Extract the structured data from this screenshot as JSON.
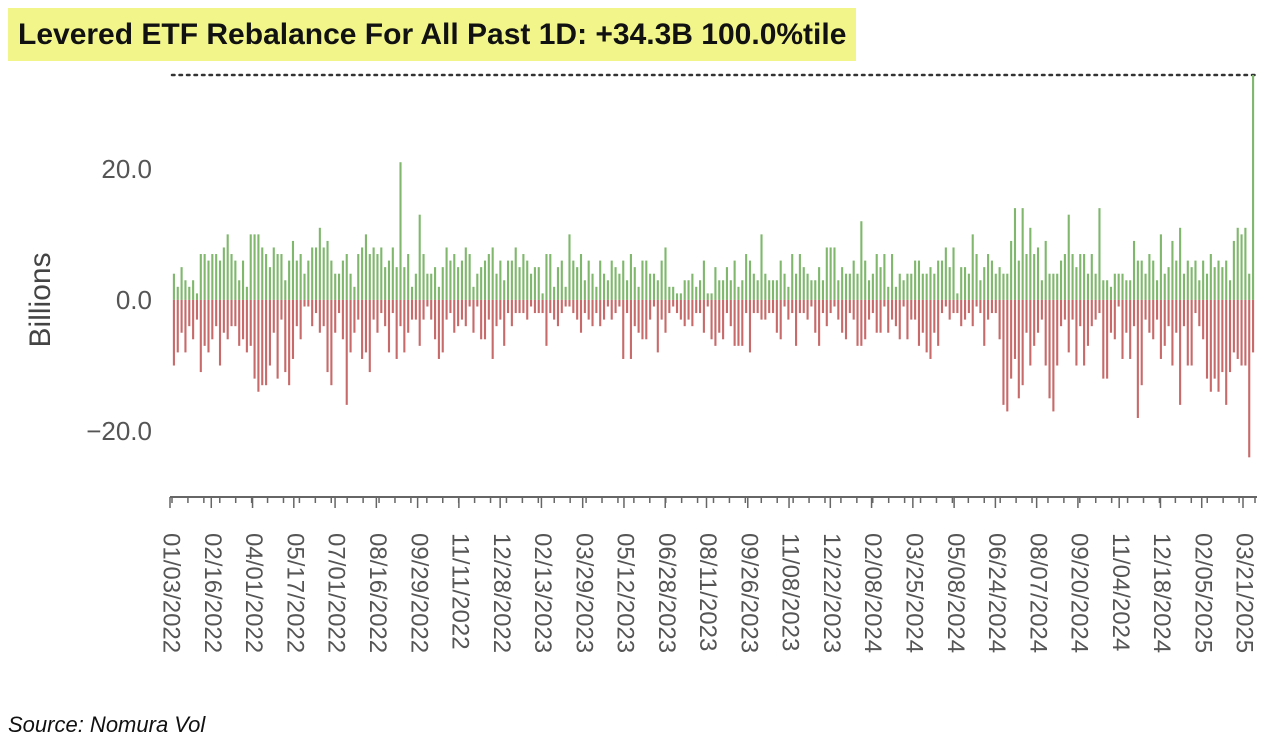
{
  "title": "Levered ETF Rebalance For All Past 1D: +34.3B 100.0%tile",
  "source": "Source: Nomura Vol",
  "colors": {
    "positive": "#7fb86d",
    "negative": "#c86a6a",
    "title_highlight": "#f1f58a",
    "axis": "#666666"
  },
  "chart_data": {
    "type": "bar",
    "xlabel": "",
    "ylabel": "Billions",
    "ylim": [
      -27,
      34.3
    ],
    "y_ticks": [
      20.0,
      0.0,
      -20.0
    ],
    "y_tick_labels": [
      "20.0",
      "0.0",
      "−20.0"
    ],
    "x_tick_labels": [
      "01/03/2022",
      "02/16/2022",
      "04/01/2022",
      "05/17/2022",
      "07/01/2022",
      "08/16/2022",
      "09/29/2022",
      "11/11/2022",
      "12/28/2022",
      "02/13/2023",
      "03/29/2023",
      "05/12/2023",
      "06/28/2023",
      "08/11/2023",
      "09/26/2023",
      "11/08/2023",
      "12/22/2023",
      "02/08/2024",
      "03/25/2024",
      "05/08/2024",
      "06/24/2024",
      "08/07/2024",
      "09/20/2024",
      "11/04/2024",
      "12/18/2024",
      "02/05/2025",
      "03/21/2025"
    ],
    "reference_line": {
      "value": 34.3,
      "style": "dotted"
    },
    "grid": false,
    "legend": "none",
    "series": [
      {
        "values": [
          [
            4,
            -10
          ],
          [
            2,
            -8
          ],
          [
            5,
            -5
          ],
          [
            3,
            -8
          ],
          [
            2,
            -4
          ],
          [
            3,
            -6
          ],
          [
            1,
            -3
          ],
          [
            7,
            -11
          ],
          [
            7,
            -7
          ],
          [
            6,
            -8
          ],
          [
            7,
            -6
          ],
          [
            7,
            -4
          ],
          [
            6,
            -10
          ],
          [
            8,
            -5
          ],
          [
            10,
            -6
          ],
          [
            7,
            -4
          ],
          [
            6,
            -4
          ],
          [
            3,
            -7
          ],
          [
            6,
            -6
          ],
          [
            2,
            -8
          ],
          [
            10,
            -7
          ],
          [
            10,
            -12
          ],
          [
            10,
            -14
          ],
          [
            8,
            -13
          ],
          [
            7,
            -13
          ],
          [
            5,
            -10
          ],
          [
            8,
            -5
          ],
          [
            7,
            -12
          ],
          [
            7,
            -3
          ],
          [
            3,
            -11
          ],
          [
            6,
            -13
          ],
          [
            9,
            -9
          ],
          [
            6,
            -4
          ],
          [
            7,
            -6
          ],
          [
            4,
            -1
          ],
          [
            6,
            -1
          ],
          [
            8,
            -4
          ],
          [
            8,
            -2
          ],
          [
            11,
            -5
          ],
          [
            8,
            -4
          ],
          [
            9,
            -11
          ],
          [
            6,
            -13
          ],
          [
            4,
            -5
          ],
          [
            4,
            -2
          ],
          [
            6,
            -6
          ],
          [
            7,
            -16
          ],
          [
            4,
            -8
          ],
          [
            2,
            -5
          ],
          [
            7,
            -3
          ],
          [
            8,
            -9
          ],
          [
            10,
            -8
          ],
          [
            7,
            -11
          ],
          [
            8,
            -3
          ],
          [
            7,
            -5
          ],
          [
            8,
            -2
          ],
          [
            5,
            -4
          ],
          [
            6,
            -8
          ],
          [
            8,
            -2
          ],
          [
            5,
            -9
          ],
          [
            21,
            -4
          ],
          [
            5,
            -8
          ],
          [
            7,
            -5
          ],
          [
            2,
            -3
          ],
          [
            4,
            -3
          ],
          [
            13,
            -7
          ],
          [
            7,
            -3
          ],
          [
            4,
            -1
          ],
          [
            4,
            -3
          ],
          [
            5,
            -6
          ],
          [
            2,
            -9
          ],
          [
            5,
            -8
          ],
          [
            8,
            -3
          ],
          [
            6,
            -2
          ],
          [
            7,
            -5
          ],
          [
            5,
            -4
          ],
          [
            6,
            -3
          ],
          [
            8,
            -4
          ],
          [
            7,
            -1
          ],
          [
            2,
            -5
          ],
          [
            4,
            -1
          ],
          [
            5,
            -6
          ],
          [
            6,
            -6
          ],
          [
            7,
            -3
          ],
          [
            8,
            -9
          ],
          [
            4,
            -4
          ],
          [
            6,
            -3
          ],
          [
            3,
            -7
          ],
          [
            6,
            -2
          ],
          [
            6,
            -4
          ],
          [
            8,
            -2
          ],
          [
            5,
            -2
          ],
          [
            7,
            -2
          ],
          [
            6,
            -3
          ],
          [
            4,
            -1
          ],
          [
            5,
            -2
          ],
          [
            5,
            -2
          ],
          [
            1,
            -2
          ],
          [
            7,
            -7
          ],
          [
            7,
            -2
          ],
          [
            2,
            -3
          ],
          [
            5,
            -4
          ],
          [
            6,
            -2
          ],
          [
            2,
            -1
          ],
          [
            10,
            -1
          ],
          [
            6,
            -2
          ],
          [
            5,
            -3
          ],
          [
            7,
            -5
          ],
          [
            3,
            -2
          ],
          [
            6,
            -3
          ],
          [
            4,
            -4
          ],
          [
            2,
            -2
          ],
          [
            6,
            -4
          ],
          [
            4,
            -3
          ],
          [
            3,
            -1
          ],
          [
            6,
            -3
          ],
          [
            5,
            -2
          ],
          [
            4,
            -1
          ],
          [
            6,
            -9
          ],
          [
            3,
            -2
          ],
          [
            7,
            -9
          ],
          [
            5,
            -4
          ],
          [
            2,
            -5
          ],
          [
            6,
            -6
          ],
          [
            6,
            -6
          ],
          [
            4,
            -3
          ],
          [
            4,
            -1
          ],
          [
            3,
            -8
          ],
          [
            6,
            -3
          ],
          [
            8,
            -5
          ],
          [
            2,
            -2
          ],
          [
            2,
            -1
          ],
          [
            1,
            -2
          ],
          [
            1,
            -3
          ],
          [
            3,
            -4
          ],
          [
            3,
            -3
          ],
          [
            4,
            -4
          ],
          [
            2,
            -2
          ],
          [
            3,
            -2
          ],
          [
            6,
            -5
          ],
          [
            1,
            -1
          ],
          [
            1,
            -6
          ],
          [
            5,
            -7
          ],
          [
            3,
            -5
          ],
          [
            3,
            -6
          ],
          [
            5,
            -2
          ],
          [
            3,
            -4
          ],
          [
            6,
            -7
          ],
          [
            2,
            -7
          ],
          [
            3,
            -7
          ],
          [
            7,
            -2
          ],
          [
            6,
            -8
          ],
          [
            4,
            -2
          ],
          [
            3,
            -2
          ],
          [
            10,
            -3
          ],
          [
            4,
            -3
          ],
          [
            3,
            -2
          ],
          [
            3,
            -2
          ],
          [
            3,
            -5
          ],
          [
            6,
            -6
          ],
          [
            4,
            -1
          ],
          [
            2,
            -3
          ],
          [
            7,
            -2
          ],
          [
            4,
            -7
          ],
          [
            7,
            -2
          ],
          [
            5,
            -2
          ],
          [
            4,
            -3
          ],
          [
            3,
            -1
          ],
          [
            3,
            -5
          ],
          [
            5,
            -7
          ],
          [
            3,
            -2
          ],
          [
            8,
            -4
          ],
          [
            8,
            -2
          ],
          [
            8,
            -1
          ],
          [
            3,
            -3
          ],
          [
            5,
            -5
          ],
          [
            4,
            -6
          ],
          [
            4,
            -2
          ],
          [
            6,
            -3
          ],
          [
            4,
            -7
          ],
          [
            12,
            -7
          ],
          [
            6,
            -6
          ],
          [
            3,
            -3
          ],
          [
            4,
            -2
          ],
          [
            7,
            -5
          ],
          [
            5,
            -5
          ],
          [
            7,
            -1
          ],
          [
            2,
            -5
          ],
          [
            7,
            -3
          ],
          [
            2,
            -4
          ],
          [
            4,
            -6
          ],
          [
            3,
            -1
          ],
          [
            4,
            -6
          ],
          [
            4,
            -3
          ],
          [
            6,
            -3
          ],
          [
            6,
            -7
          ],
          [
            4,
            -5
          ],
          [
            4,
            -8
          ],
          [
            5,
            -9
          ],
          [
            4,
            -5
          ],
          [
            6,
            -7
          ],
          [
            6,
            -2
          ],
          [
            8,
            -1
          ],
          [
            5,
            -3
          ],
          [
            8,
            -2
          ],
          [
            1,
            -2
          ],
          [
            5,
            -4
          ],
          [
            5,
            -3
          ],
          [
            4,
            -2
          ],
          [
            10,
            -4
          ],
          [
            7,
            -1
          ],
          [
            3,
            -2
          ],
          [
            5,
            -7
          ],
          [
            7,
            -3
          ],
          [
            6,
            -2
          ],
          [
            4,
            -2
          ],
          [
            5,
            -6
          ],
          [
            4,
            -16
          ],
          [
            4,
            -17
          ],
          [
            9,
            -12
          ],
          [
            14,
            -9
          ],
          [
            6,
            -15
          ],
          [
            14,
            -13
          ],
          [
            7,
            -5
          ],
          [
            11,
            -10
          ],
          [
            7,
            -7
          ],
          [
            8,
            -5
          ],
          [
            3,
            -3
          ],
          [
            9,
            -10
          ],
          [
            4,
            -15
          ],
          [
            4,
            -17
          ],
          [
            4,
            -10
          ],
          [
            6,
            -4
          ],
          [
            7,
            -3
          ],
          [
            13,
            -8
          ],
          [
            7,
            -3
          ],
          [
            5,
            -10
          ],
          [
            7,
            -4
          ],
          [
            7,
            -10
          ],
          [
            4,
            -7
          ],
          [
            7,
            -4
          ],
          [
            4,
            -3
          ],
          [
            14,
            -2
          ],
          [
            3,
            -12
          ],
          [
            3,
            -12
          ],
          [
            2,
            -5
          ],
          [
            4,
            -6
          ],
          [
            4,
            -1
          ],
          [
            4,
            -9
          ],
          [
            3,
            -5
          ],
          [
            3,
            -9
          ],
          [
            9,
            -4
          ],
          [
            6,
            -18
          ],
          [
            6,
            -13
          ],
          [
            4,
            -3
          ],
          [
            7,
            -5
          ],
          [
            6,
            -6
          ],
          [
            3,
            -3
          ],
          [
            10,
            -9
          ],
          [
            4,
            -7
          ],
          [
            5,
            -4
          ],
          [
            9,
            -10
          ],
          [
            6,
            -5
          ],
          [
            11,
            -16
          ],
          [
            4,
            -4
          ],
          [
            6,
            -10
          ],
          [
            5,
            -10
          ],
          [
            6,
            -2
          ],
          [
            3,
            -4
          ],
          [
            6,
            -6
          ],
          [
            4,
            -12
          ],
          [
            7,
            -14
          ],
          [
            5,
            -12
          ],
          [
            6,
            -14
          ],
          [
            5,
            -11
          ],
          [
            6,
            -16
          ],
          [
            3,
            -11
          ],
          [
            9,
            -8
          ],
          [
            11,
            -9
          ],
          [
            10,
            -10
          ],
          [
            11,
            -10
          ],
          [
            4,
            -24
          ],
          [
            34.3,
            -8
          ]
        ]
      }
    ]
  }
}
